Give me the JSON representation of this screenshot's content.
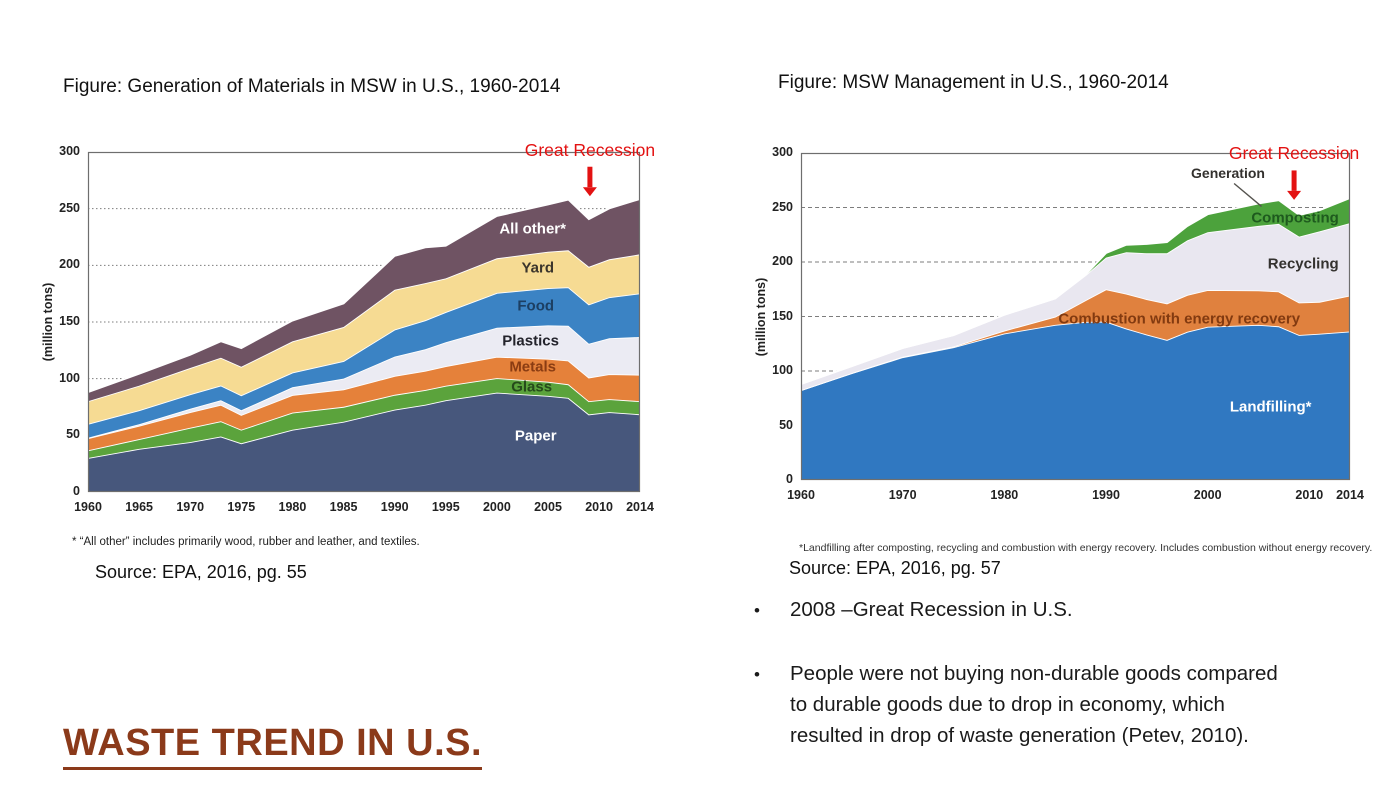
{
  "slide": {
    "heading": "WASTE TREND IN U.S.",
    "heading_color": "#8b3a1a"
  },
  "left_panel": {
    "figure_title": "Figure: Generation of Materials in MSW in U.S., 1960-2014",
    "annotation": "Great Recession",
    "footnote": "* “All other” includes primarily wood, rubber and leather, and textiles.",
    "source": "Source: EPA, 2016, pg. 55"
  },
  "right_panel": {
    "figure_title": "Figure: MSW Management in U.S., 1960-2014",
    "annotation": "Great Recession",
    "footnote": "*Landfilling after composting, recycling and combustion with energy recovery. Includes combustion without energy recovery.",
    "source": "Source: EPA, 2016, pg. 57",
    "bullets": [
      "2008 –Great Recession in U.S.",
      "People were not buying non-durable goods compared\nto durable goods due to drop in economy, which\nresulted in drop of waste generation (Petev, 2010)."
    ]
  },
  "chart_data": [
    {
      "id": "chart-left",
      "type": "area",
      "stacked": true,
      "title": "Figure: Generation of Materials in MSW in U.S., 1960-2014",
      "ylabel": "(million tons)",
      "ylim": [
        0,
        300
      ],
      "yticks": [
        0,
        50,
        100,
        150,
        200,
        250,
        300
      ],
      "xlim": [
        1960,
        2014
      ],
      "xticks": [
        1960,
        1965,
        1970,
        1975,
        1980,
        1985,
        1990,
        1995,
        2000,
        2005,
        2010,
        2014
      ],
      "grid_dash": "1.5,2.5",
      "x": [
        1960,
        1965,
        1970,
        1973,
        1975,
        1980,
        1985,
        1990,
        1993,
        1995,
        2000,
        2005,
        2007,
        2009,
        2011,
        2014
      ],
      "series": [
        {
          "name": "Paper",
          "color": "#47577c",
          "values": [
            30,
            38,
            44,
            49,
            43,
            55,
            62,
            72.7,
            77,
            81,
            87.7,
            84.8,
            83,
            68.5,
            70.5,
            68.6
          ]
        },
        {
          "name": "Glass",
          "color": "#5ba33c",
          "values": [
            6.7,
            8.7,
            12.7,
            13.5,
            12,
            15.1,
            13.2,
            13.1,
            13,
            12.8,
            12.8,
            12.5,
            12,
            11.6,
            11.5,
            11.5
          ]
        },
        {
          "name": "Metals",
          "color": "#e5813a",
          "values": [
            10.8,
            11.7,
            13.8,
            14.5,
            13,
            15.5,
            15.3,
            16.6,
            17,
            17.3,
            18.9,
            20.3,
            21,
            20.9,
            22,
            23.4
          ]
        },
        {
          "name": "Plastics",
          "color": "#ebebf3",
          "values": [
            0.4,
            1.4,
            2.9,
            4,
            4.1,
            6.8,
            9.6,
            17.1,
            19,
            21,
            25.6,
            29.4,
            30.7,
            29.8,
            31.6,
            33.3
          ]
        },
        {
          "name": "Food",
          "color": "#3b83c4",
          "values": [
            12.2,
            12.4,
            12.8,
            13,
            13.2,
            13,
            15.5,
            23.9,
            25.5,
            26.7,
            30.7,
            32.9,
            34,
            34.7,
            36.3,
            38.4
          ]
        },
        {
          "name": "Yard",
          "color": "#f6db93",
          "values": [
            20,
            21.6,
            23.2,
            24.5,
            25.2,
            27.5,
            30,
            35,
            32.8,
            29.7,
            30.5,
            32.1,
            32.6,
            33.2,
            33.4,
            34.5
          ]
        },
        {
          "name": "All other*",
          "color": "#6f5363",
          "values": [
            8,
            10.5,
            11.7,
            14.5,
            16.5,
            18.3,
            20.7,
            29.9,
            31.5,
            28.8,
            37.3,
            41.7,
            44.7,
            42.1,
            44.9,
            48.8
          ]
        }
      ],
      "inner_labels": [
        {
          "text": "All other*",
          "year": 2003.5,
          "value": 232,
          "color": "#ffffff"
        },
        {
          "text": "Yard",
          "year": 2004.0,
          "value": 198,
          "color": "#3b352c"
        },
        {
          "text": "Food",
          "year": 2003.8,
          "value": 164,
          "color": "#1c3f63"
        },
        {
          "text": "Plastics",
          "year": 2003.3,
          "value": 133,
          "color": "#23232b"
        },
        {
          "text": "Metals",
          "year": 2003.5,
          "value": 110,
          "color": "#8a3c12"
        },
        {
          "text": "Glass",
          "year": 2003.4,
          "value": 93,
          "color": "#264a1b"
        },
        {
          "text": "Paper",
          "year": 2003.8,
          "value": 49,
          "color": "#ffffff"
        }
      ],
      "annotation": {
        "text": "Great Recession",
        "year": 2009.1,
        "from": 287,
        "to": 261,
        "color": "#e31212"
      }
    },
    {
      "id": "chart-right",
      "type": "area",
      "stacked": true,
      "title": "Figure: MSW Management in U.S., 1960-2014",
      "ylabel": "(million tons)",
      "ylim": [
        0,
        300
      ],
      "yticks": [
        0,
        50,
        100,
        150,
        200,
        250,
        300
      ],
      "xlim": [
        1960,
        2014
      ],
      "xticks": [
        1960,
        1970,
        1980,
        1990,
        2000,
        2010,
        2014
      ],
      "grid_dash": "4,3",
      "x": [
        1960,
        1965,
        1970,
        1975,
        1980,
        1985,
        1988,
        1990,
        1992,
        1994,
        1996,
        1998,
        2000,
        2005,
        2007,
        2009,
        2011,
        2014
      ],
      "series": [
        {
          "name": "Landfilling*",
          "color": "#3078c1",
          "values": [
            82.5,
            98,
            112.7,
            121.8,
            134.4,
            142.3,
            145,
            145.3,
            139,
            133.5,
            128.5,
            136,
            140.6,
            142.3,
            141,
            133,
            134.2,
            136.2
          ]
        },
        {
          "name": "Combustion with energy recovery",
          "color": "#e0813e",
          "values": [
            0,
            0.2,
            0.4,
            0.7,
            2.7,
            7.6,
            20,
            29.7,
            32,
            32.5,
            33.5,
            33.8,
            33.7,
            31.6,
            32,
            29.8,
            29.3,
            33.1
          ]
        },
        {
          "name": "Recycling",
          "color": "#e9e7f0",
          "values": [
            5.6,
            6.2,
            8,
            10.3,
            14.5,
            16.7,
            23,
            29,
            38,
            42,
            46,
            50,
            53,
            59.2,
            62,
            60.5,
            64.6,
            66.4
          ]
        },
        {
          "name": "Composting",
          "color": "#4ca23c",
          "values": [
            0,
            0,
            0,
            0,
            0,
            0,
            0.5,
            4.2,
            6.8,
            8.5,
            10.3,
            13.1,
            16.5,
            20.6,
            21.7,
            19.8,
            19.3,
            23
          ]
        }
      ],
      "inner_labels": [
        {
          "text": "Generation",
          "year": 2002.0,
          "value": 282,
          "color": "#33312e",
          "size": 14
        },
        {
          "text": "Composting",
          "year": 2008.6,
          "value": 240,
          "color": "#1e5a1e"
        },
        {
          "text": "Recycling",
          "year": 2009.4,
          "value": 198,
          "color": "#33312e"
        },
        {
          "text": "Combustion with energy recovery",
          "year": 1997.2,
          "value": 148,
          "color": "#823a10"
        },
        {
          "text": "Landfilling*",
          "year": 2006.2,
          "value": 67,
          "color": "#ffffff"
        }
      ],
      "annotation": {
        "text": "Great Recession",
        "year": 2008.5,
        "from": 284,
        "to": 257,
        "color": "#e31212"
      },
      "callout": {
        "x1": 2002.6,
        "v1": 272,
        "x2": 2005.3,
        "v2": 251
      }
    }
  ]
}
